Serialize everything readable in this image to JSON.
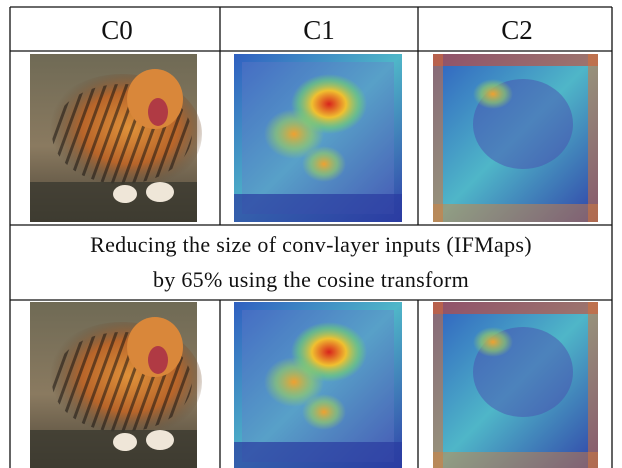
{
  "table": {
    "header": [
      "C0",
      "C1",
      "C2"
    ],
    "caption": [
      "Reducing the size of conv-layer inputs (IFMaps)",
      "by 65% using the cosine transform"
    ]
  }
}
